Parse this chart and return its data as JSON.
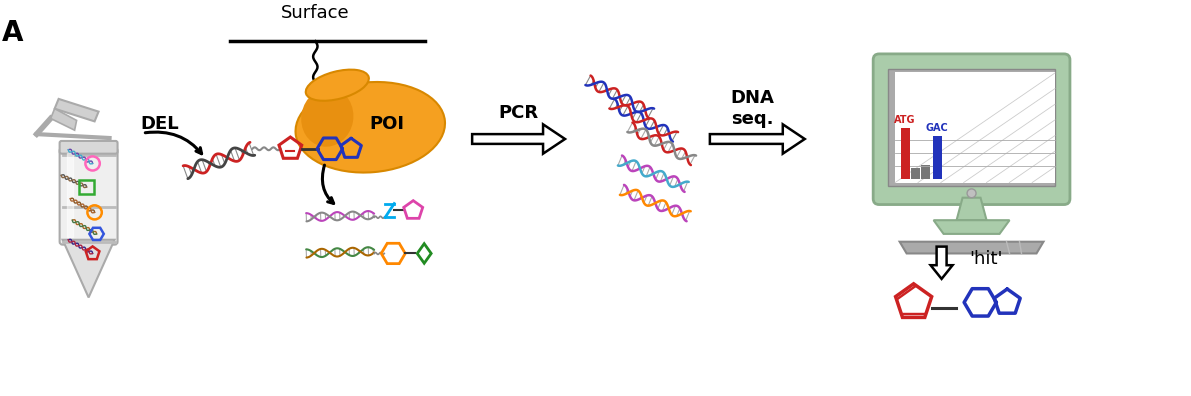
{
  "background_color": "#ffffff",
  "fig_width": 11.91,
  "fig_height": 3.96,
  "title_label": "A",
  "label_DEL": "DEL",
  "label_Surface": "Surface",
  "label_POI": "POI",
  "label_PCR": "PCR",
  "label_DNA_seq": "DNA\nseq.",
  "label_hit": "'hit'",
  "label_ATG": "ATG",
  "label_GAC": "GAC",
  "color_orange": "#F5A020",
  "color_red": "#CC2222",
  "color_blue": "#2233BB",
  "color_green_light": "#AACCAA",
  "color_gray_tube": "#D8D8D8",
  "color_gray_screen": "#999999",
  "color_gray_kbd": "#AAAAAA"
}
